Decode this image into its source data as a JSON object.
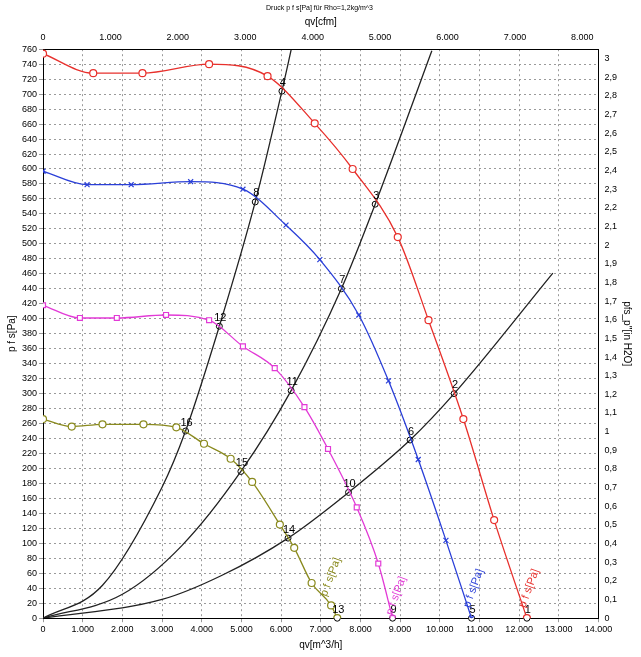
{
  "chart_data": {
    "type": "line",
    "title": "Druck p f s[Pa] für Rho=1,2kg/m^3",
    "x_label": "qv[m^3/h]",
    "x2_label": "qv[cfm]",
    "y_label": "p f s[Pa]",
    "y2_label": "pfs_p''[in H2O]",
    "grid": true,
    "xlim": [
      0,
      14000
    ],
    "xticks": [
      0,
      {
        "value": 1000,
        "label": "1.000"
      },
      {
        "value": 2000,
        "label": "2.000"
      },
      {
        "value": 3000,
        "label": "3.000"
      },
      {
        "value": 4000,
        "label": "4.000"
      },
      {
        "value": 5000,
        "label": "5.000"
      },
      {
        "value": 6000,
        "label": "6.000"
      },
      {
        "value": 7000,
        "label": "7.000"
      },
      {
        "value": 8000,
        "label": "8.000"
      },
      {
        "value": 9000,
        "label": "9.000"
      },
      {
        "value": 10000,
        "label": "10.000"
      },
      {
        "value": 11000,
        "label": "11.000"
      },
      {
        "value": 12000,
        "label": "12.000"
      },
      {
        "value": 13000,
        "label": "13.000"
      },
      {
        "value": 14000,
        "label": "14.000"
      }
    ],
    "x2lim": [
      0,
      8240
    ],
    "x2ticks": [
      0,
      {
        "value": 1000,
        "label": "1.000"
      },
      {
        "value": 2000,
        "label": "2.000"
      },
      {
        "value": 3000,
        "label": "3.000"
      },
      {
        "value": 4000,
        "label": "4.000"
      },
      {
        "value": 5000,
        "label": "5.000"
      },
      {
        "value": 6000,
        "label": "6.000"
      },
      {
        "value": 7000,
        "label": "7.000"
      },
      {
        "value": 8000,
        "label": "8.000"
      }
    ],
    "ylim": [
      0,
      760
    ],
    "yticks": [
      0,
      20,
      40,
      60,
      80,
      100,
      120,
      140,
      160,
      180,
      200,
      220,
      240,
      260,
      280,
      300,
      320,
      340,
      360,
      380,
      400,
      420,
      440,
      460,
      480,
      500,
      520,
      540,
      560,
      580,
      600,
      620,
      640,
      660,
      680,
      700,
      720,
      740,
      760
    ],
    "y2lim": [
      0,
      3.05
    ],
    "y2ticks": [
      0,
      {
        "value": 0.1,
        "label": "0,1"
      },
      {
        "value": 0.2,
        "label": "0,2"
      },
      {
        "value": 0.3,
        "label": "0,3"
      },
      {
        "value": 0.4,
        "label": "0,4"
      },
      {
        "value": 0.5,
        "label": "0,5"
      },
      {
        "value": 0.6,
        "label": "0,6"
      },
      {
        "value": 0.7,
        "label": "0,7"
      },
      {
        "value": 0.8,
        "label": "0,8"
      },
      {
        "value": 0.9,
        "label": "0,9"
      },
      1,
      {
        "value": 1.1,
        "label": "1,1"
      },
      {
        "value": 1.2,
        "label": "1,2"
      },
      {
        "value": 1.3,
        "label": "1,3"
      },
      {
        "value": 1.4,
        "label": "1,4"
      },
      {
        "value": 1.5,
        "label": "1,5"
      },
      {
        "value": 1.6,
        "label": "1,6"
      },
      {
        "value": 1.7,
        "label": "1,7"
      },
      {
        "value": 1.8,
        "label": "1,8"
      },
      {
        "value": 1.9,
        "label": "1,9"
      },
      2,
      {
        "value": 2.1,
        "label": "2,1"
      },
      {
        "value": 2.2,
        "label": "2,2"
      },
      {
        "value": 2.3,
        "label": "2,3"
      },
      {
        "value": 2.4,
        "label": "2,4"
      },
      {
        "value": 2.5,
        "label": "2,5"
      },
      {
        "value": 2.6,
        "label": "2,6"
      },
      {
        "value": 2.7,
        "label": "2,7"
      },
      {
        "value": 2.8,
        "label": "2,8"
      },
      {
        "value": 2.9,
        "label": "2,9"
      },
      3
    ],
    "series": [
      {
        "color": "#e8302c",
        "marker": "circle",
        "line_style": "solid",
        "x": [
          0,
          1266,
          2506,
          4186,
          5659,
          6848,
          7804,
          8941,
          9716,
          10594,
          11370,
          12196
        ],
        "values": [
          754,
          728,
          728,
          740,
          724,
          661,
          600,
          509,
          398,
          266,
          131,
          0
        ]
      },
      {
        "color": "#2a3fd8",
        "marker": "x",
        "line_style": "solid",
        "x": [
          0,
          1111,
          2222,
          3721,
          5039,
          6124,
          6977,
          7959,
          8708,
          9457,
          10155,
          10800
        ],
        "values": [
          597,
          579,
          579,
          583,
          573,
          525,
          479,
          405,
          317,
          212,
          104,
          0
        ]
      },
      {
        "color": "#e23ad6",
        "marker": "square",
        "line_style": "solid",
        "x": [
          0,
          930,
          1860,
          3101,
          4186,
          5039,
          5840,
          6589,
          7183,
          7907,
          8450,
          8811
        ],
        "values": [
          418,
          401,
          401,
          405,
          398,
          363,
          334,
          282,
          226,
          148,
          73,
          0
        ]
      },
      {
        "color": "#8a8a1e",
        "marker": "circle",
        "line_style": "solid",
        "x": [
          0,
          724,
          1499,
          2532,
          3359,
          4057,
          4729,
          5271,
          5969,
          6331,
          6770,
          7261,
          7416
        ],
        "values": [
          266,
          256,
          259,
          259,
          255,
          233,
          213,
          182,
          125,
          94,
          47,
          17,
          0
        ]
      },
      {
        "color": "#222222",
        "marker": "none",
        "line_style": "solid",
        "x": [
          0,
          1500,
          3000,
          3592,
          4444,
          5349,
          6021,
          6253
        ],
        "values": [
          0,
          44,
          175,
          250,
          390,
          556,
          704,
          759
        ]
      },
      {
        "color": "#222222",
        "marker": "none",
        "line_style": "solid",
        "x": [
          0,
          2000,
          3500,
          4987,
          6253,
          7519,
          8372,
          9800
        ],
        "values": [
          0,
          32,
          97,
          196,
          304,
          440,
          553,
          758
        ]
      },
      {
        "color": "#222222",
        "marker": "none",
        "line_style": "solid",
        "x": [
          0,
          3000,
          4500,
          6176,
          7700,
          9251,
          10362,
          12850
        ],
        "values": [
          0,
          25,
          57,
          107,
          168,
          238,
          300,
          461
        ]
      }
    ],
    "points": [
      {
        "label": "1",
        "x": 12196,
        "y": 0
      },
      {
        "label": "2",
        "x": 10362,
        "y": 300
      },
      {
        "label": "3",
        "x": 8372,
        "y": 553
      },
      {
        "label": "4",
        "x": 6021,
        "y": 704
      },
      {
        "label": "5",
        "x": 10800,
        "y": 0
      },
      {
        "label": "6",
        "x": 9251,
        "y": 238
      },
      {
        "label": "7",
        "x": 7519,
        "y": 440
      },
      {
        "label": "8",
        "x": 5349,
        "y": 556
      },
      {
        "label": "9",
        "x": 8811,
        "y": 0
      },
      {
        "label": "10",
        "x": 7700,
        "y": 168
      },
      {
        "label": "11",
        "x": 6253,
        "y": 304
      },
      {
        "label": "12",
        "x": 4444,
        "y": 390
      },
      {
        "label": "13",
        "x": 7416,
        "y": 0
      },
      {
        "label": "14",
        "x": 6176,
        "y": 107
      },
      {
        "label": "15",
        "x": 4987,
        "y": 196
      },
      {
        "label": "16",
        "x": 3592,
        "y": 250
      }
    ],
    "annotations": [
      {
        "text": "p f s[Pa]",
        "x": 12250,
        "y": 40,
        "color": "#e8302c"
      },
      {
        "text": "p f s[Pa]",
        "x": 10850,
        "y": 40,
        "color": "#2a3fd8"
      },
      {
        "text": "p f s[Pa]",
        "x": 8900,
        "y": 30,
        "color": "#e23ad6"
      },
      {
        "text": "p f s[Pa]",
        "x": 7250,
        "y": 55,
        "color": "#8a8a1e"
      }
    ]
  }
}
